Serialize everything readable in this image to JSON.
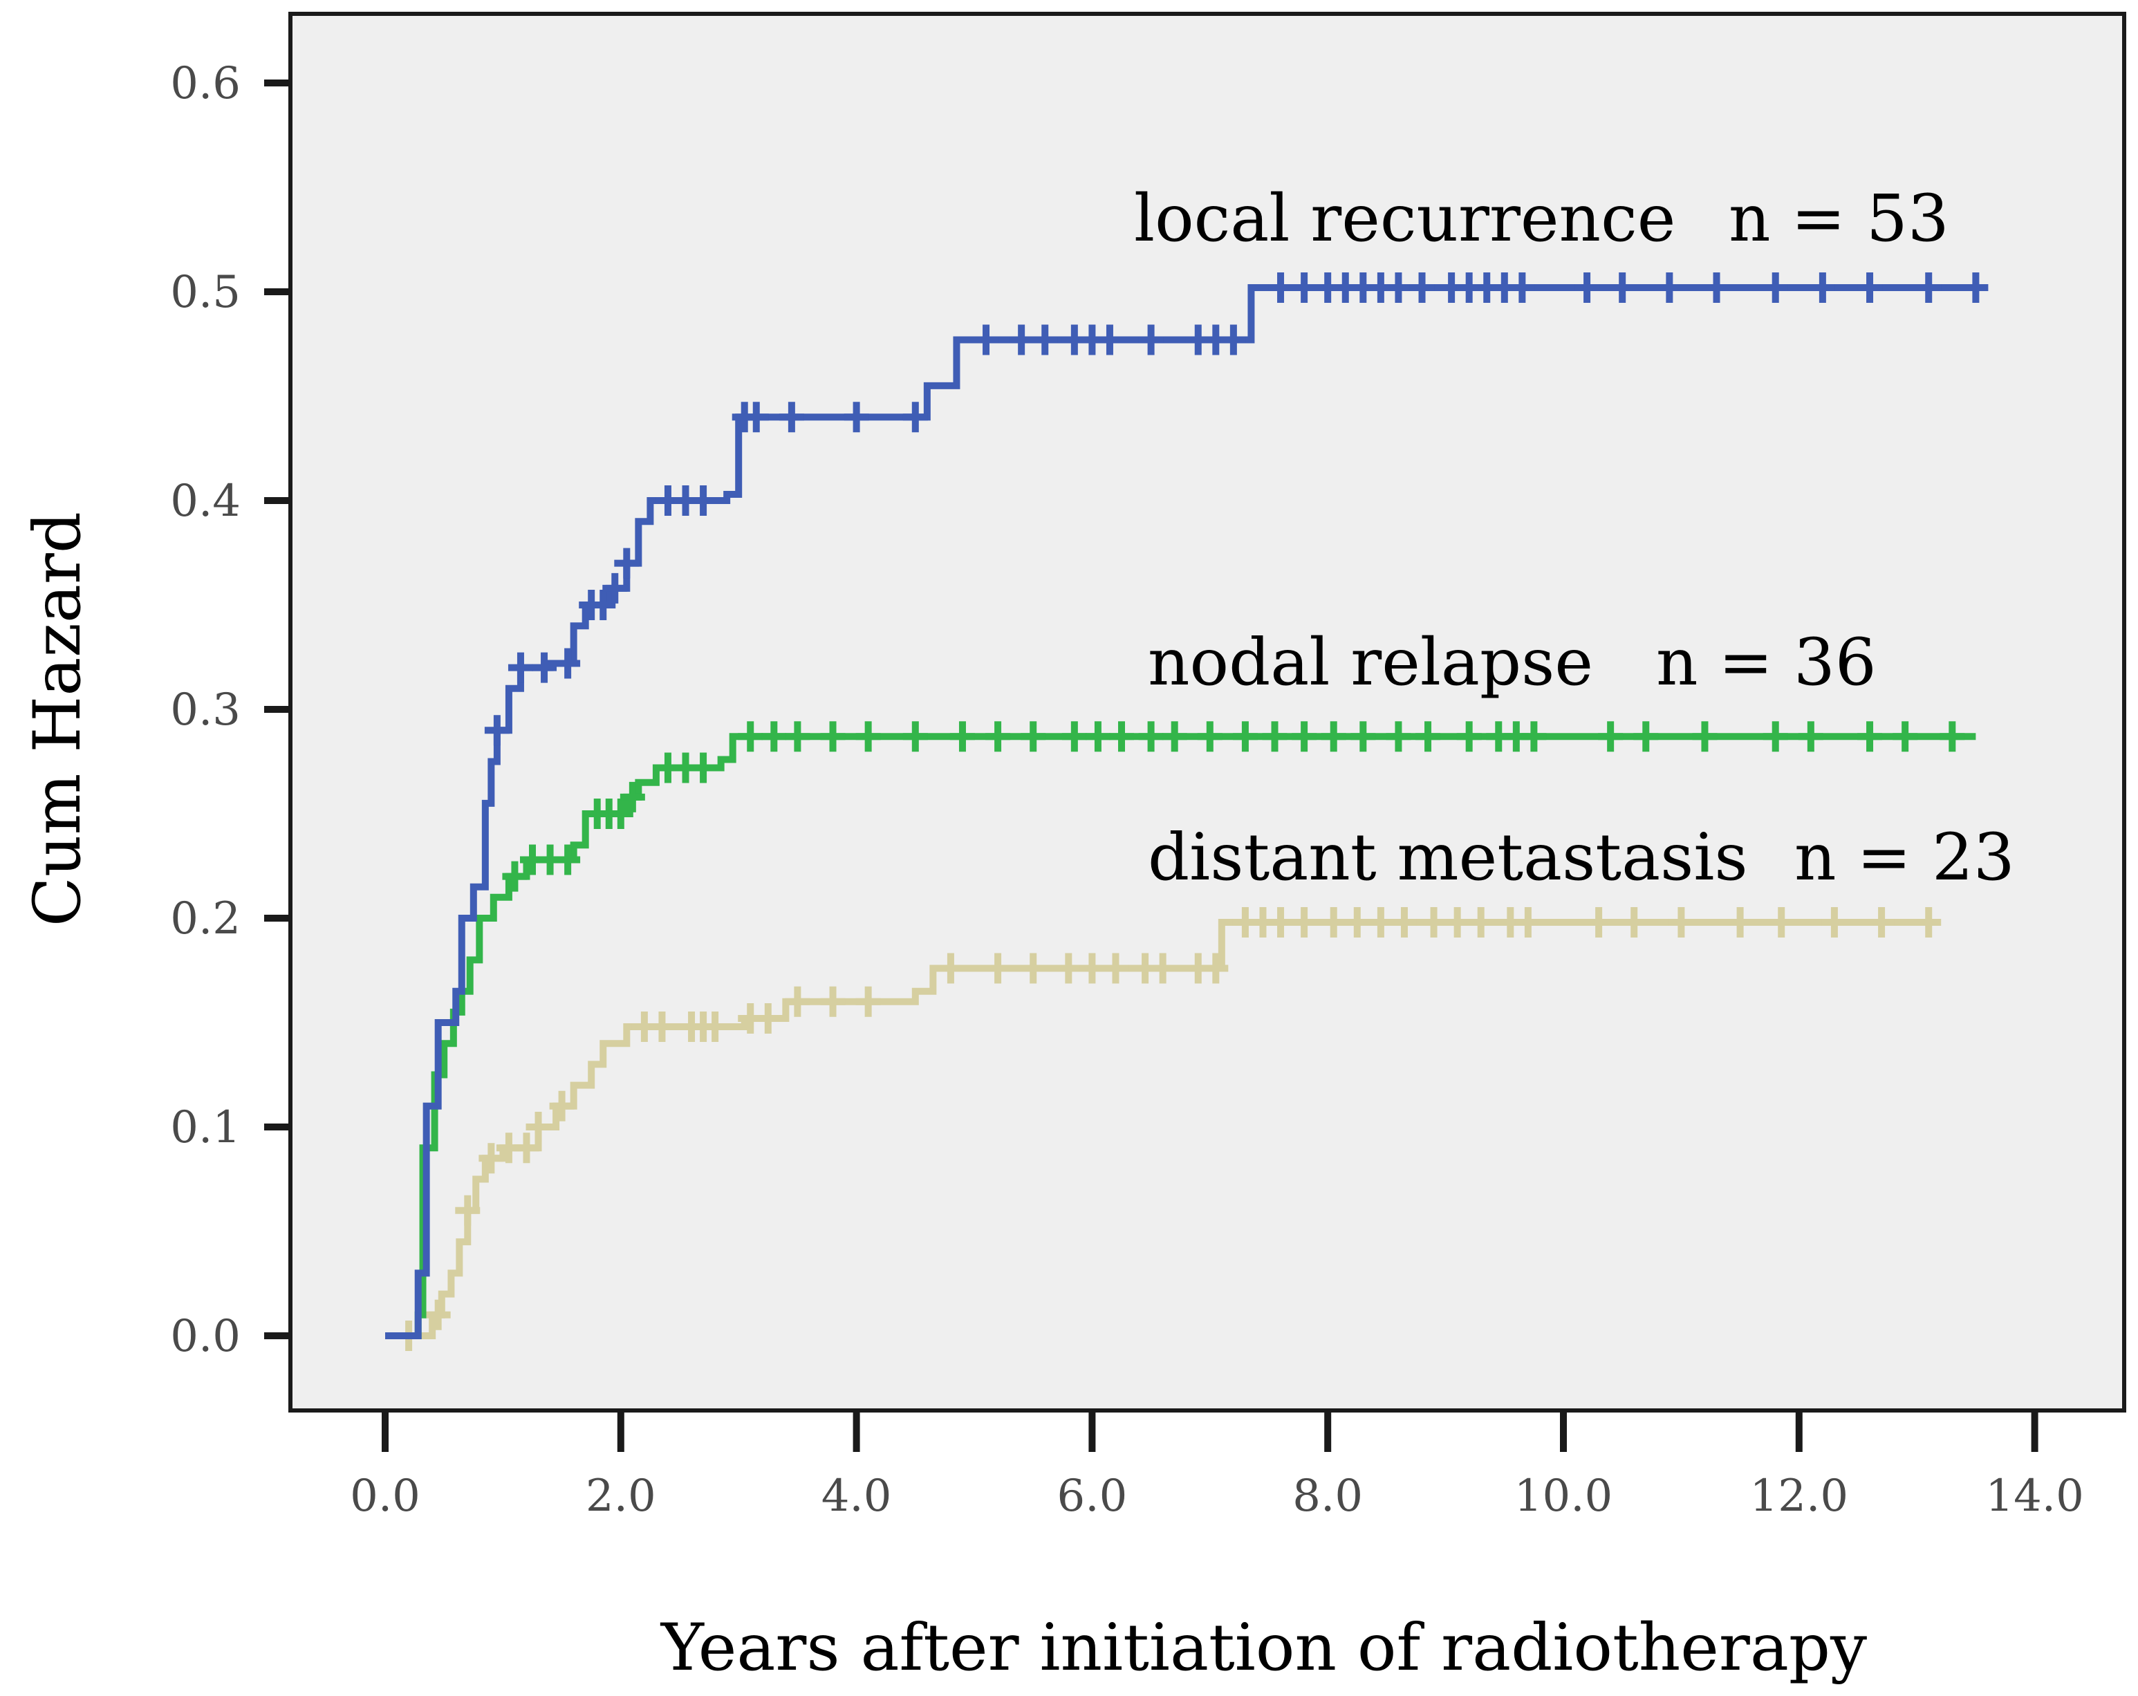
{
  "chart_data": {
    "type": "line",
    "title": "",
    "xlabel": "Years after initiation of radiotherapy",
    "ylabel": "Cum Hazard",
    "xlim": [
      0,
      14
    ],
    "ylim": [
      0,
      0.6
    ],
    "x_ticks": [
      "0.0",
      "2.0",
      "4.0",
      "6.0",
      "8.0",
      "10.0",
      "12.0",
      "14.0"
    ],
    "y_ticks": [
      "0.0",
      "0.1",
      "0.2",
      "0.3",
      "0.4",
      "0.5",
      "0.6"
    ],
    "grid": false,
    "background": "#efefef",
    "series": [
      {
        "name": "local recurrence",
        "label": "local recurrence",
        "n_label": "n = 53",
        "color": "#3f5db5",
        "steps": [
          [
            0.0,
            0.0
          ],
          [
            0.28,
            0.03
          ],
          [
            0.35,
            0.11
          ],
          [
            0.45,
            0.15
          ],
          [
            0.6,
            0.165
          ],
          [
            0.65,
            0.2
          ],
          [
            0.75,
            0.215
          ],
          [
            0.85,
            0.255
          ],
          [
            0.9,
            0.275
          ],
          [
            0.95,
            0.29
          ],
          [
            1.05,
            0.31
          ],
          [
            1.15,
            0.32
          ],
          [
            1.4,
            0.322
          ],
          [
            1.6,
            0.34
          ],
          [
            1.7,
            0.35
          ],
          [
            1.9,
            0.358
          ],
          [
            2.05,
            0.37
          ],
          [
            2.15,
            0.39
          ],
          [
            2.25,
            0.4
          ],
          [
            2.9,
            0.403
          ],
          [
            3.0,
            0.44
          ],
          [
            4.6,
            0.455
          ],
          [
            4.85,
            0.477
          ],
          [
            7.35,
            0.502
          ],
          [
            13.5,
            0.502
          ]
        ],
        "censor_x": [
          0.95,
          1.15,
          1.35,
          1.55,
          1.75,
          1.85,
          1.95,
          2.05,
          2.4,
          2.55,
          2.7,
          3.05,
          3.15,
          3.45,
          4.0,
          4.5,
          5.1,
          5.4,
          5.6,
          5.85,
          6.0,
          6.15,
          6.5,
          6.9,
          7.05,
          7.2,
          7.6,
          7.8,
          8.0,
          8.15,
          8.3,
          8.45,
          8.6,
          8.8,
          9.05,
          9.2,
          9.35,
          9.5,
          9.65,
          10.2,
          10.5,
          10.9,
          11.3,
          11.8,
          12.2,
          12.6,
          13.1,
          13.5
        ]
      },
      {
        "name": "nodal relapse",
        "label": "nodal relapse",
        "n_label": "n = 36",
        "color": "#33b54a",
        "steps": [
          [
            0.0,
            0.0
          ],
          [
            0.28,
            0.01
          ],
          [
            0.32,
            0.09
          ],
          [
            0.42,
            0.125
          ],
          [
            0.5,
            0.14
          ],
          [
            0.58,
            0.155
          ],
          [
            0.65,
            0.165
          ],
          [
            0.72,
            0.18
          ],
          [
            0.8,
            0.2
          ],
          [
            0.92,
            0.21
          ],
          [
            1.05,
            0.22
          ],
          [
            1.2,
            0.228
          ],
          [
            1.6,
            0.235
          ],
          [
            1.7,
            0.25
          ],
          [
            2.05,
            0.258
          ],
          [
            2.15,
            0.265
          ],
          [
            2.3,
            0.272
          ],
          [
            2.85,
            0.276
          ],
          [
            2.95,
            0.287
          ],
          [
            13.5,
            0.287
          ]
        ],
        "censor_x": [
          1.1,
          1.25,
          1.4,
          1.55,
          1.8,
          1.9,
          2.0,
          2.1,
          2.4,
          2.55,
          2.7,
          3.1,
          3.3,
          3.5,
          3.8,
          4.1,
          4.5,
          4.9,
          5.2,
          5.5,
          5.85,
          6.05,
          6.25,
          6.5,
          6.7,
          7.0,
          7.3,
          7.55,
          7.8,
          8.05,
          8.3,
          8.6,
          8.85,
          9.2,
          9.45,
          9.6,
          9.75,
          10.4,
          10.7,
          11.2,
          11.8,
          12.1,
          12.6,
          12.9,
          13.3
        ]
      },
      {
        "name": "distant metastasis",
        "label": "distant metastasis",
        "n_label": "n = 23",
        "color": "#d6cfa0",
        "steps": [
          [
            0.0,
            0.0
          ],
          [
            0.4,
            0.01
          ],
          [
            0.48,
            0.02
          ],
          [
            0.56,
            0.03
          ],
          [
            0.63,
            0.045
          ],
          [
            0.7,
            0.06
          ],
          [
            0.77,
            0.075
          ],
          [
            0.85,
            0.085
          ],
          [
            1.0,
            0.09
          ],
          [
            1.3,
            0.1
          ],
          [
            1.45,
            0.11
          ],
          [
            1.6,
            0.12
          ],
          [
            1.75,
            0.13
          ],
          [
            1.85,
            0.14
          ],
          [
            2.05,
            0.148
          ],
          [
            3.05,
            0.152
          ],
          [
            3.4,
            0.16
          ],
          [
            4.5,
            0.165
          ],
          [
            4.65,
            0.176
          ],
          [
            7.1,
            0.198
          ],
          [
            13.1,
            0.198
          ]
        ],
        "censor_x": [
          0.2,
          0.45,
          0.7,
          0.9,
          1.05,
          1.2,
          1.3,
          1.5,
          2.2,
          2.35,
          2.6,
          2.7,
          2.8,
          3.1,
          3.25,
          3.5,
          3.8,
          4.1,
          4.8,
          5.2,
          5.5,
          5.8,
          6.0,
          6.2,
          6.45,
          6.6,
          6.9,
          7.05,
          7.3,
          7.45,
          7.6,
          7.8,
          8.05,
          8.25,
          8.45,
          8.65,
          8.9,
          9.1,
          9.3,
          9.55,
          9.7,
          10.3,
          10.6,
          11.0,
          11.5,
          11.85,
          12.3,
          12.7,
          13.1
        ]
      }
    ]
  }
}
